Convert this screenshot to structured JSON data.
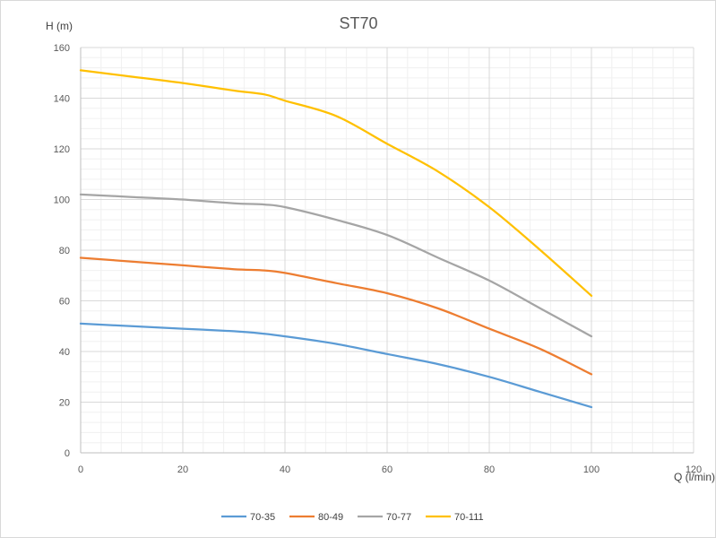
{
  "chart_data": {
    "type": "line",
    "title": "ST70",
    "xlabel": "Q (l/min)",
    "ylabel": "H (m)",
    "xlim": [
      0,
      120
    ],
    "ylim": [
      0,
      160
    ],
    "x_ticks": [
      0,
      20,
      40,
      60,
      80,
      100,
      120
    ],
    "y_ticks": [
      0,
      20,
      40,
      60,
      80,
      100,
      120,
      140,
      160
    ],
    "grid": true,
    "minor_grid": true,
    "legend_position": "bottom",
    "series": [
      {
        "name": "70-35",
        "color": "#5B9BD5",
        "points": [
          [
            0,
            51
          ],
          [
            10,
            50
          ],
          [
            20,
            49
          ],
          [
            30,
            48
          ],
          [
            36,
            47
          ],
          [
            40,
            46
          ],
          [
            50,
            43
          ],
          [
            60,
            39
          ],
          [
            70,
            35
          ],
          [
            80,
            30
          ],
          [
            90,
            24
          ],
          [
            100,
            18
          ]
        ]
      },
      {
        "name": "80-49",
        "color": "#ED7D31",
        "points": [
          [
            0,
            77
          ],
          [
            10,
            75.5
          ],
          [
            20,
            74
          ],
          [
            30,
            72.5
          ],
          [
            36,
            72
          ],
          [
            40,
            71
          ],
          [
            50,
            67
          ],
          [
            60,
            63
          ],
          [
            70,
            57
          ],
          [
            80,
            49
          ],
          [
            90,
            41
          ],
          [
            100,
            31
          ]
        ]
      },
      {
        "name": "70-77",
        "color": "#A5A5A5",
        "points": [
          [
            0,
            102
          ],
          [
            10,
            101
          ],
          [
            20,
            100
          ],
          [
            30,
            98.5
          ],
          [
            36,
            98
          ],
          [
            40,
            97
          ],
          [
            50,
            92
          ],
          [
            60,
            86
          ],
          [
            70,
            77
          ],
          [
            80,
            68
          ],
          [
            90,
            57
          ],
          [
            100,
            46
          ]
        ]
      },
      {
        "name": "70-111",
        "color": "#FFC000",
        "points": [
          [
            0,
            151
          ],
          [
            10,
            148.5
          ],
          [
            20,
            146
          ],
          [
            30,
            143
          ],
          [
            36,
            141.5
          ],
          [
            40,
            139
          ],
          [
            50,
            133
          ],
          [
            60,
            122
          ],
          [
            70,
            111
          ],
          [
            80,
            97
          ],
          [
            90,
            80
          ],
          [
            100,
            62
          ]
        ]
      }
    ]
  },
  "colors": {
    "major_grid": "#d9d9d9",
    "minor_grid": "#f0f0f0",
    "axis": "#bfbfbf"
  }
}
